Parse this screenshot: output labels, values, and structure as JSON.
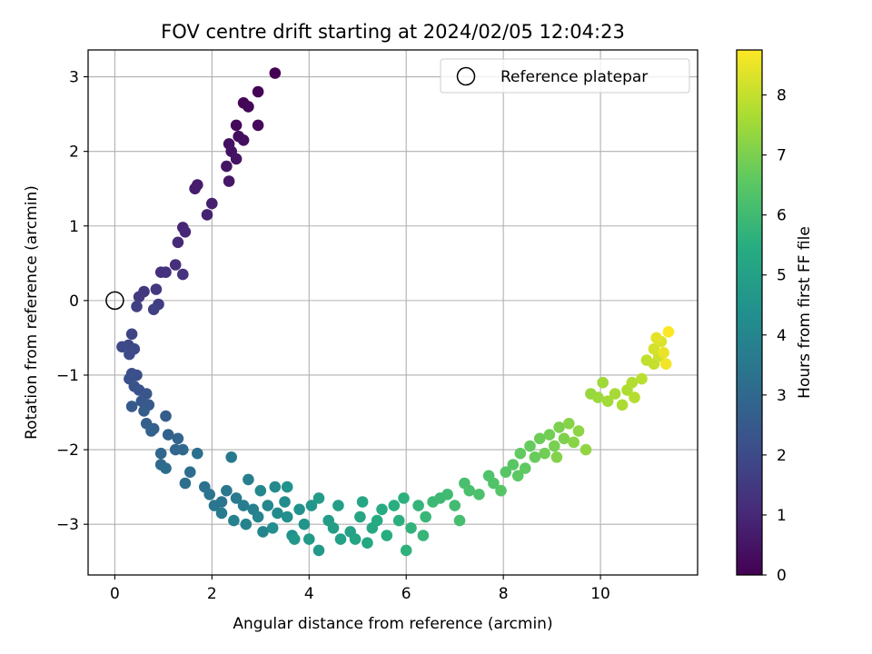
{
  "chart_data": {
    "type": "scatter",
    "title": "FOV centre drift starting at 2024/02/05 12:04:23",
    "xlabel": "Angular distance from reference (arcmin)",
    "ylabel": "Rotation from reference (arcmin)",
    "xlim": [
      -0.55,
      12.0
    ],
    "ylim": [
      -3.68,
      3.36
    ],
    "xticks": [
      0,
      2,
      4,
      6,
      8,
      10
    ],
    "yticks": [
      -3,
      -2,
      -1,
      0,
      1,
      2,
      3
    ],
    "grid": true,
    "legend": {
      "placement": "top-right",
      "entries": [
        "Reference platepar"
      ]
    },
    "reference_point": {
      "x": 0,
      "y": 0
    },
    "colorbar": {
      "label": "Hours from first FF file",
      "colormap": "viridis",
      "range": [
        0,
        8.75
      ],
      "ticks": [
        0,
        1,
        2,
        3,
        4,
        5,
        6,
        7,
        8
      ]
    },
    "series": [
      {
        "color_by": "hours",
        "path_control_points": [
          {
            "hours": 0.0,
            "x": 3.3,
            "y": 3.05
          },
          {
            "hours": 0.5,
            "x": 2.6,
            "y": 2.4
          },
          {
            "hours": 1.0,
            "x": 1.9,
            "y": 1.4
          },
          {
            "hours": 1.5,
            "x": 1.2,
            "y": 0.6
          },
          {
            "hours": 2.0,
            "x": 0.6,
            "y": 0.05
          },
          {
            "hours": 2.4,
            "x": 0.35,
            "y": -0.6
          },
          {
            "hours": 2.8,
            "x": 0.45,
            "y": -1.2
          },
          {
            "hours": 3.2,
            "x": 0.9,
            "y": -1.9
          },
          {
            "hours": 3.7,
            "x": 1.9,
            "y": -2.6
          },
          {
            "hours": 4.3,
            "x": 3.2,
            "y": -2.95
          },
          {
            "hours": 4.9,
            "x": 4.5,
            "y": -3.05
          },
          {
            "hours": 5.5,
            "x": 5.6,
            "y": -3.0
          },
          {
            "hours": 6.0,
            "x": 6.5,
            "y": -2.8
          },
          {
            "hours": 6.6,
            "x": 7.5,
            "y": -2.5
          },
          {
            "hours": 7.2,
            "x": 8.4,
            "y": -2.15
          },
          {
            "hours": 7.8,
            "x": 9.2,
            "y": -1.7
          },
          {
            "hours": 8.3,
            "x": 10.3,
            "y": -1.25
          },
          {
            "hours": 8.75,
            "x": 11.3,
            "y": -0.5
          }
        ],
        "points": [
          [
            3.3,
            3.05,
            0.0
          ],
          [
            2.95,
            2.8,
            0.05
          ],
          [
            2.65,
            2.65,
            0.1
          ],
          [
            2.75,
            2.6,
            0.12
          ],
          [
            2.5,
            2.35,
            0.2
          ],
          [
            2.95,
            2.35,
            0.22
          ],
          [
            2.55,
            2.2,
            0.3
          ],
          [
            2.65,
            2.15,
            0.32
          ],
          [
            2.35,
            2.1,
            0.38
          ],
          [
            2.4,
            2.0,
            0.42
          ],
          [
            2.5,
            1.9,
            0.45
          ],
          [
            2.3,
            1.8,
            0.5
          ],
          [
            2.35,
            1.6,
            0.55
          ],
          [
            1.7,
            1.55,
            0.65
          ],
          [
            1.65,
            1.5,
            0.7
          ],
          [
            2.0,
            1.3,
            0.78
          ],
          [
            1.9,
            1.15,
            0.85
          ],
          [
            1.4,
            0.98,
            0.95
          ],
          [
            1.45,
            0.92,
            1.0
          ],
          [
            1.3,
            0.78,
            1.05
          ],
          [
            1.25,
            0.48,
            1.15
          ],
          [
            0.95,
            0.38,
            1.2
          ],
          [
            1.05,
            0.38,
            1.25
          ],
          [
            1.4,
            0.35,
            1.3
          ],
          [
            0.85,
            0.15,
            1.4
          ],
          [
            0.6,
            0.12,
            1.45
          ],
          [
            0.5,
            0.05,
            1.5
          ],
          [
            0.9,
            -0.05,
            1.6
          ],
          [
            0.45,
            -0.08,
            1.65
          ],
          [
            0.8,
            -0.12,
            1.7
          ],
          [
            0.35,
            -0.45,
            1.8
          ],
          [
            0.28,
            -0.6,
            1.9
          ],
          [
            0.15,
            -0.62,
            1.95
          ],
          [
            0.4,
            -0.65,
            2.0
          ],
          [
            0.3,
            -0.72,
            2.05
          ],
          [
            0.35,
            -0.98,
            2.1
          ],
          [
            0.45,
            -1.0,
            2.15
          ],
          [
            0.3,
            -1.05,
            2.2
          ],
          [
            0.5,
            -1.2,
            2.25
          ],
          [
            0.4,
            -1.15,
            2.3
          ],
          [
            0.65,
            -1.25,
            2.35
          ],
          [
            0.55,
            -1.35,
            2.4
          ],
          [
            0.7,
            -1.4,
            2.45
          ],
          [
            0.35,
            -1.42,
            2.5
          ],
          [
            0.6,
            -1.48,
            2.55
          ],
          [
            1.05,
            -1.55,
            2.6
          ],
          [
            0.65,
            -1.65,
            2.65
          ],
          [
            0.8,
            -1.72,
            2.7
          ],
          [
            1.1,
            -1.8,
            2.75
          ],
          [
            0.75,
            -1.75,
            2.8
          ],
          [
            1.3,
            -1.85,
            2.85
          ],
          [
            1.25,
            -2.0,
            2.9
          ],
          [
            0.95,
            -2.05,
            2.95
          ],
          [
            1.4,
            -2.0,
            3.0
          ],
          [
            0.95,
            -2.2,
            3.05
          ],
          [
            1.05,
            -2.25,
            3.1
          ],
          [
            1.55,
            -2.3,
            3.15
          ],
          [
            1.45,
            -2.45,
            3.2
          ],
          [
            1.7,
            -2.05,
            3.25
          ],
          [
            1.85,
            -2.5,
            3.3
          ],
          [
            1.95,
            -2.6,
            3.35
          ],
          [
            2.2,
            -2.7,
            3.4
          ],
          [
            2.05,
            -2.75,
            3.45
          ],
          [
            2.3,
            -2.55,
            3.5
          ],
          [
            2.4,
            -2.1,
            3.55
          ],
          [
            2.5,
            -2.65,
            3.6
          ],
          [
            2.2,
            -2.85,
            3.65
          ],
          [
            2.65,
            -2.75,
            3.7
          ],
          [
            2.75,
            -2.4,
            3.75
          ],
          [
            2.85,
            -2.8,
            3.8
          ],
          [
            2.45,
            -2.95,
            3.85
          ],
          [
            2.7,
            -3.0,
            3.9
          ],
          [
            2.95,
            -2.9,
            3.95
          ],
          [
            3.05,
            -3.1,
            4.0
          ],
          [
            3.15,
            -2.75,
            4.05
          ],
          [
            3.0,
            -2.55,
            4.1
          ],
          [
            3.3,
            -2.5,
            4.15
          ],
          [
            3.35,
            -2.85,
            4.2
          ],
          [
            3.5,
            -2.7,
            4.25
          ],
          [
            3.25,
            -3.05,
            4.3
          ],
          [
            3.55,
            -2.9,
            4.35
          ],
          [
            3.65,
            -3.15,
            4.4
          ],
          [
            3.55,
            -2.5,
            4.45
          ],
          [
            3.8,
            -2.8,
            4.5
          ],
          [
            3.9,
            -3.0,
            4.55
          ],
          [
            4.05,
            -2.75,
            4.6
          ],
          [
            3.7,
            -3.2,
            4.65
          ],
          [
            4.0,
            -3.2,
            4.7
          ],
          [
            4.2,
            -3.35,
            4.75
          ],
          [
            4.2,
            -2.65,
            4.8
          ],
          [
            4.4,
            -2.95,
            4.85
          ],
          [
            4.5,
            -3.05,
            4.9
          ],
          [
            4.6,
            -2.75,
            4.95
          ],
          [
            4.65,
            -3.2,
            5.0
          ],
          [
            4.85,
            -3.1,
            5.05
          ],
          [
            4.95,
            -3.2,
            5.1
          ],
          [
            5.05,
            -2.9,
            5.15
          ],
          [
            5.1,
            -2.7,
            5.2
          ],
          [
            5.2,
            -3.25,
            5.25
          ],
          [
            5.3,
            -3.05,
            5.3
          ],
          [
            5.4,
            -2.95,
            5.35
          ],
          [
            5.5,
            -2.8,
            5.4
          ],
          [
            5.6,
            -3.15,
            5.45
          ],
          [
            5.75,
            -2.75,
            5.5
          ],
          [
            5.85,
            -2.95,
            5.55
          ],
          [
            5.95,
            -2.65,
            5.6
          ],
          [
            6.0,
            -3.35,
            5.65
          ],
          [
            6.1,
            -3.05,
            5.7
          ],
          [
            6.25,
            -2.75,
            5.75
          ],
          [
            6.35,
            -3.15,
            5.8
          ],
          [
            6.4,
            -2.9,
            5.85
          ],
          [
            6.55,
            -2.7,
            5.9
          ],
          [
            6.7,
            -2.65,
            5.95
          ],
          [
            6.85,
            -2.6,
            6.0
          ],
          [
            7.0,
            -2.75,
            6.05
          ],
          [
            7.1,
            -2.95,
            6.1
          ],
          [
            7.2,
            -2.45,
            6.15
          ],
          [
            7.3,
            -2.55,
            6.2
          ],
          [
            7.5,
            -2.6,
            6.25
          ],
          [
            7.7,
            -2.35,
            6.3
          ],
          [
            7.8,
            -2.45,
            6.35
          ],
          [
            7.95,
            -2.55,
            6.4
          ],
          [
            8.05,
            -2.3,
            6.45
          ],
          [
            8.2,
            -2.2,
            6.5
          ],
          [
            8.3,
            -2.35,
            6.55
          ],
          [
            8.45,
            -2.25,
            6.6
          ],
          [
            8.35,
            -2.05,
            6.65
          ],
          [
            8.55,
            -1.95,
            6.7
          ],
          [
            8.65,
            -2.1,
            6.75
          ],
          [
            8.75,
            -1.85,
            6.8
          ],
          [
            8.85,
            -2.05,
            6.85
          ],
          [
            8.95,
            -1.8,
            6.9
          ],
          [
            9.05,
            -1.95,
            6.95
          ],
          [
            9.15,
            -1.7,
            7.0
          ],
          [
            9.25,
            -1.85,
            7.05
          ],
          [
            9.1,
            -2.1,
            7.1
          ],
          [
            9.35,
            -1.65,
            7.15
          ],
          [
            9.45,
            -1.9,
            7.2
          ],
          [
            9.55,
            -1.75,
            7.25
          ],
          [
            9.7,
            -2.0,
            7.3
          ],
          [
            9.8,
            -1.25,
            7.4
          ],
          [
            9.95,
            -1.3,
            7.45
          ],
          [
            10.05,
            -1.1,
            7.5
          ],
          [
            10.15,
            -1.35,
            7.55
          ],
          [
            10.3,
            -1.25,
            7.6
          ],
          [
            10.45,
            -1.4,
            7.65
          ],
          [
            10.55,
            -1.2,
            7.7
          ],
          [
            10.65,
            -1.1,
            7.75
          ],
          [
            10.7,
            -1.3,
            7.8
          ],
          [
            10.85,
            -1.05,
            7.85
          ],
          [
            10.95,
            -0.8,
            7.95
          ],
          [
            11.1,
            -0.85,
            8.0
          ],
          [
            11.2,
            -0.75,
            8.1
          ],
          [
            11.1,
            -0.65,
            8.2
          ],
          [
            11.25,
            -0.55,
            8.3
          ],
          [
            11.15,
            -0.5,
            8.4
          ],
          [
            11.3,
            -0.7,
            8.5
          ],
          [
            11.35,
            -0.85,
            8.6
          ],
          [
            11.4,
            -0.42,
            8.75
          ]
        ]
      }
    ]
  }
}
